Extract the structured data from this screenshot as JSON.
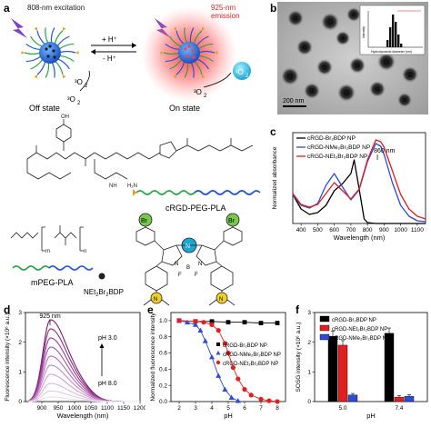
{
  "panel_labels": {
    "a": "a",
    "b": "b",
    "c": "c",
    "d": "d",
    "e": "e",
    "f": "f"
  },
  "schematic": {
    "excitation": "808-nm excitation",
    "emission_line1": "925-nm",
    "emission_line2": "emission",
    "proton_plus": "+ H⁺",
    "proton_minus": "- H⁺",
    "o2_left": "³O",
    "o2_left_sub": "2",
    "o2_right": "³O",
    "o2_right_sub": "2",
    "singlet_o2": "¹O",
    "singlet_o2_sub": "2",
    "off_state": "Off state",
    "on_state": "On state",
    "crgd_peg_pla": "cRGD-PEG-PLA",
    "mpeg_pla": "mPEG-PLA",
    "net_label": "NEt",
    "net_sub": "2",
    "net_br": "Br",
    "net_sub2": "2",
    "net_bdp": "BDP",
    "br_top_left": "Br",
    "br_top_right": "Br",
    "boron": "B",
    "fluorine_left": "F",
    "fluorine_right": "F",
    "nitrogen_left": "N",
    "nitrogen_right": "N",
    "nitrogen_center": "N",
    "amine_left": "N",
    "amine_right": "N",
    "m_sub": "m",
    "n_sub": "n",
    "h2n": "H₂N",
    "nh": "NH",
    "oh": "OH"
  },
  "tem": {
    "scale_bar": "200 nm",
    "inset_xlabel": "Hydrodynamic diameter (nm)",
    "inset_ylabel": "Intensity"
  },
  "chart_data": [
    {
      "type": "line",
      "panel": "c",
      "xlabel": "Wavelength (nm)",
      "ylabel": "Normalized absorbance",
      "xlim": [
        350,
        1150
      ],
      "xticks": [
        400,
        500,
        600,
        700,
        800,
        900,
        1000,
        1100
      ],
      "annotation": "860 nm",
      "series": [
        {
          "name": "cRGD-Br₂BDP NP",
          "color": "#000000",
          "x": [
            350,
            400,
            450,
            500,
            550,
            600,
            650,
            700,
            720,
            750,
            780,
            800,
            850,
            900,
            1000,
            1100,
            1150
          ],
          "y": [
            0.32,
            0.16,
            0.1,
            0.12,
            0.2,
            0.36,
            0.44,
            0.55,
            0.7,
            0.38,
            0.05,
            0.01,
            0.0,
            0.0,
            0.0,
            0.0,
            0.0
          ]
        },
        {
          "name": "cRGD-NMe₂Br₂BDP NP",
          "color": "#2e4bd6",
          "x": [
            350,
            400,
            450,
            500,
            550,
            600,
            650,
            700,
            750,
            800,
            850,
            880,
            900,
            950,
            1000,
            1050,
            1100,
            1150
          ],
          "y": [
            0.32,
            0.2,
            0.17,
            0.22,
            0.42,
            0.55,
            0.4,
            0.26,
            0.37,
            0.68,
            0.88,
            0.85,
            0.76,
            0.45,
            0.2,
            0.08,
            0.03,
            0.02
          ]
        },
        {
          "name": "cRGD-NEt₂Br₂BDP NP",
          "color": "#e02020",
          "x": [
            350,
            400,
            450,
            500,
            550,
            600,
            650,
            700,
            750,
            800,
            850,
            880,
            900,
            950,
            1000,
            1050,
            1100,
            1150
          ],
          "y": [
            0.33,
            0.21,
            0.18,
            0.21,
            0.33,
            0.45,
            0.36,
            0.27,
            0.38,
            0.7,
            0.92,
            0.9,
            0.84,
            0.58,
            0.32,
            0.16,
            0.08,
            0.05
          ]
        }
      ]
    },
    {
      "type": "line",
      "panel": "d",
      "xlabel": "Wavelength (nm)",
      "ylabel": "Fluorescence intensity (×10⁶ a.u.)",
      "xlim": [
        850,
        1200
      ],
      "ylim": [
        0,
        3
      ],
      "xticks": [
        900,
        950,
        1000,
        1050,
        1100,
        1150,
        1200
      ],
      "yticks": [
        0,
        1,
        2,
        3
      ],
      "annotation_peak": "925 nm",
      "annotation_top": "pH 3.0",
      "annotation_bottom": "pH 8.0",
      "peak_x": 925,
      "peaks": [
        2.7,
        2.4,
        2.1,
        1.8,
        1.5,
        1.2,
        0.9,
        0.6,
        0.35,
        0.15
      ],
      "colors": [
        "#7a1f6e",
        "#8c2f84",
        "#9a3f96",
        "#a957a8",
        "#b86db8",
        "#c487c6",
        "#cfa0d1",
        "#d9b8db",
        "#e3cce5",
        "#ece0ee"
      ]
    },
    {
      "type": "scatter",
      "panel": "e",
      "xlabel": "pH",
      "ylabel": "Normalized fluorescence intensity",
      "xlim": [
        1.5,
        8.5
      ],
      "ylim": [
        0,
        1.1
      ],
      "xticks": [
        2,
        3,
        4,
        5,
        6,
        7,
        8
      ],
      "yticks": [
        0.0,
        0.2,
        0.4,
        0.6,
        0.8,
        1.0
      ],
      "series": [
        {
          "name": "cRGD-Br₂BDP NP",
          "color": "#000000",
          "marker": "square",
          "x": [
            2,
            3,
            4,
            5,
            6,
            7,
            8
          ],
          "y": [
            1.0,
            0.99,
            0.99,
            0.98,
            0.98,
            0.97,
            0.97
          ]
        },
        {
          "name": "cRGD-NMe₂Br₂BDP NP",
          "color": "#2e4bd6",
          "marker": "triangle",
          "x": [
            2.0,
            2.5,
            3.0,
            3.3,
            3.6,
            4.0,
            4.4,
            4.8,
            5.2,
            5.6
          ],
          "y": [
            1.0,
            0.98,
            0.95,
            0.88,
            0.75,
            0.55,
            0.32,
            0.15,
            0.05,
            0.01
          ]
        },
        {
          "name": "cRGD-NEt₂Br₂BDP NP",
          "color": "#e02020",
          "marker": "circle",
          "x": [
            2.0,
            3.0,
            3.5,
            4.0,
            4.4,
            4.8,
            5.0,
            5.3,
            5.6,
            6.0,
            6.4,
            7.0,
            7.5,
            8.0
          ],
          "y": [
            1.0,
            0.99,
            0.98,
            0.95,
            0.88,
            0.72,
            0.6,
            0.42,
            0.28,
            0.15,
            0.08,
            0.03,
            0.01,
            0.0
          ]
        }
      ]
    },
    {
      "type": "bar",
      "panel": "f",
      "xlabel": "pH",
      "ylabel": "SOSG intensity (×10⁶ a.u.)",
      "ylim": [
        0,
        3
      ],
      "yticks": [
        0,
        1,
        2,
        3
      ],
      "categories": [
        "5.0",
        "7.4"
      ],
      "series": [
        {
          "name": "cRGD-Br₂BDP NP",
          "color": "#000000",
          "values": [
            2.2,
            2.3
          ]
        },
        {
          "name": "cRGD-NEt₂Br₂BDP NP",
          "color": "#e02020",
          "values": [
            1.9,
            0.15
          ]
        },
        {
          "name": "cRGD-NMe₂Br₂BDP NP",
          "color": "#2e4bd6",
          "values": [
            0.22,
            0.18
          ]
        }
      ]
    }
  ]
}
